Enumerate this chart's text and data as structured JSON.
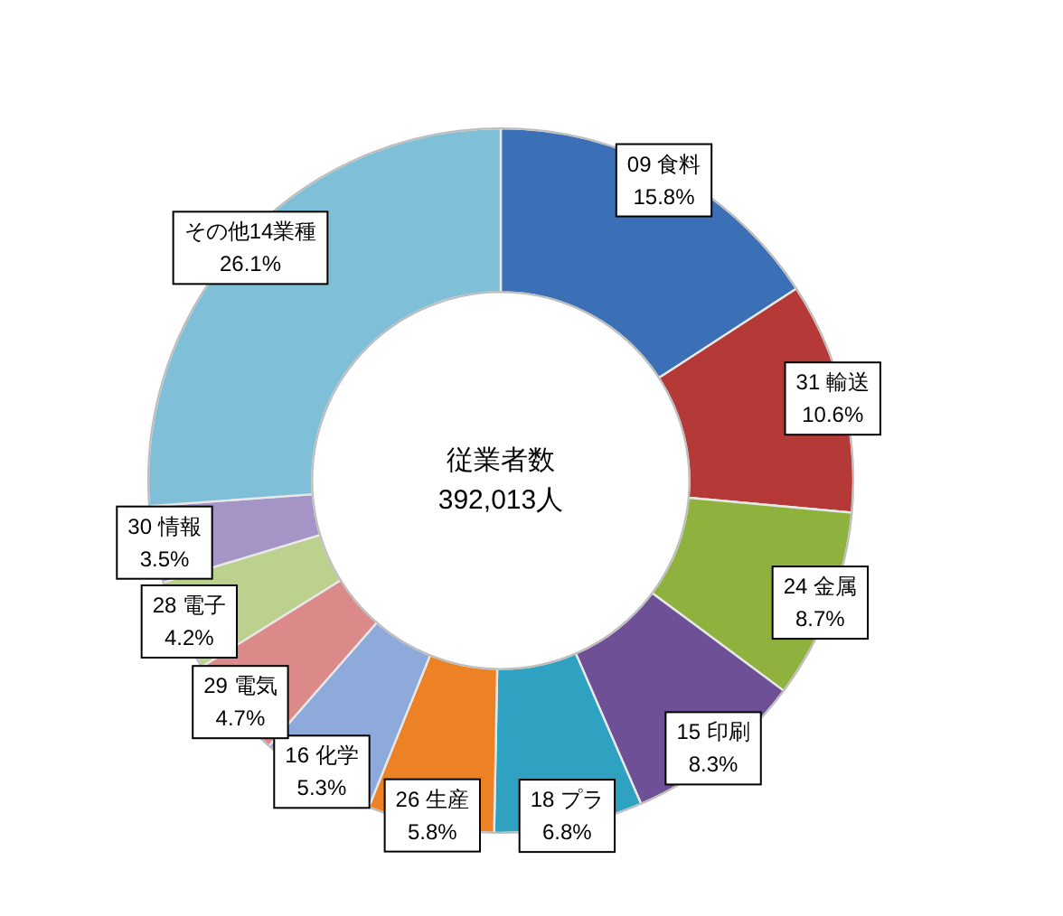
{
  "chart_data": {
    "type": "donut",
    "categories": [
      "09 食料",
      "31 輸送",
      "24 金属",
      "15 印刷",
      "18 プラ",
      "26 生産",
      "16 化学",
      "29 電気",
      "28 電子",
      "30 情報",
      "その他14業種"
    ],
    "values": [
      15.8,
      10.6,
      8.7,
      8.3,
      6.8,
      5.8,
      5.3,
      4.7,
      4.2,
      3.5,
      26.1
    ],
    "colors": [
      "#3b70b6",
      "#b53a37",
      "#8fb23f",
      "#6d5096",
      "#30a2c1",
      "#ec8125",
      "#8eaada",
      "#dc8a89",
      "#bcd18e",
      "#a595c6",
      "#7fc0d8"
    ],
    "value_labels": [
      "15.8%",
      "10.6%",
      "8.7%",
      "8.3%",
      "6.8%",
      "5.8%",
      "5.3%",
      "4.7%",
      "4.2%",
      "3.5%",
      "26.1%"
    ],
    "annotations": [
      "従業者数",
      "392,013人"
    ]
  }
}
